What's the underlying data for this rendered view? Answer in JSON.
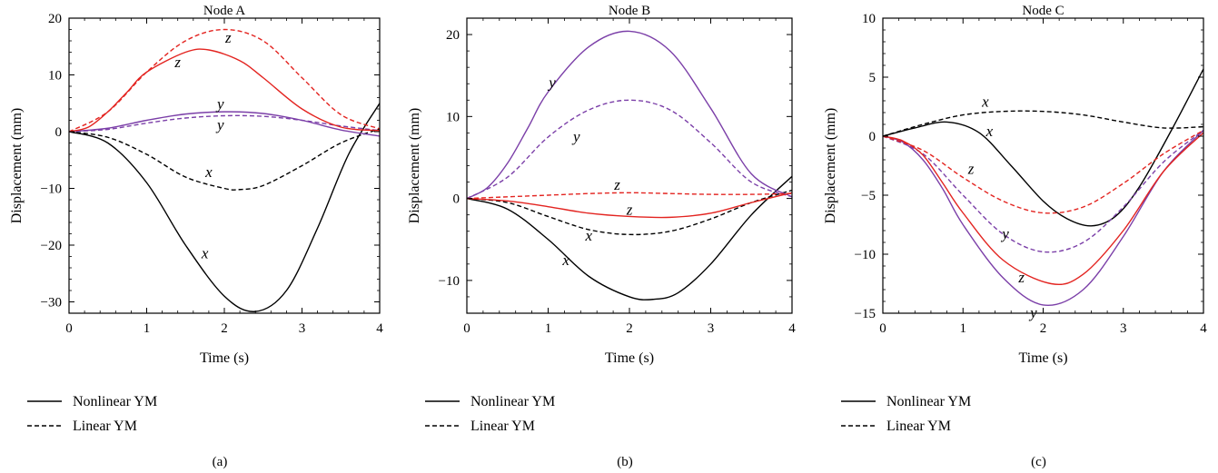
{
  "legend": {
    "solid_label": "Nonlinear YM",
    "dashed_label": "Linear YM"
  },
  "colors": {
    "x": "#000000",
    "y": "#7b3fa8",
    "z": "#e32420"
  },
  "chart_data": [
    {
      "type": "line",
      "panel_label": "(a)",
      "title": "Node A",
      "xlabel": "Time (s)",
      "ylabel": "Displacement (mm)",
      "xlim": [
        0,
        4
      ],
      "ylim": [
        -32,
        20
      ],
      "xticks": [
        "0",
        "1",
        "2",
        "3",
        "4"
      ],
      "yticks": [
        20,
        10,
        0,
        -10,
        -20,
        -30
      ],
      "ytick_labels": [
        "20",
        "10",
        "0",
        "−10",
        "−20",
        "−30"
      ],
      "series": [
        {
          "name": "x",
          "style": "solid",
          "x": [
            0,
            0.5,
            1,
            1.5,
            2,
            2.4,
            2.8,
            3.2,
            3.6,
            4
          ],
          "y": [
            0,
            -2,
            -9,
            -20,
            -29,
            -31.7,
            -28,
            -17,
            -4,
            5
          ]
        },
        {
          "name": "x",
          "style": "dashed",
          "x": [
            0,
            0.5,
            1,
            1.5,
            2,
            2.2,
            2.5,
            3,
            3.5,
            4
          ],
          "y": [
            0,
            -1,
            -4,
            -8,
            -10,
            -10.2,
            -9.5,
            -6,
            -2,
            0.5
          ]
        },
        {
          "name": "y",
          "style": "solid",
          "x": [
            0,
            0.5,
            1,
            1.5,
            2,
            2.5,
            3,
            3.5,
            4
          ],
          "y": [
            0,
            0.6,
            2,
            3.1,
            3.5,
            3.2,
            2,
            0.3,
            -0.8
          ]
        },
        {
          "name": "y",
          "style": "dashed",
          "x": [
            0,
            0.5,
            1,
            1.5,
            2,
            2.5,
            3,
            3.5,
            4
          ],
          "y": [
            0,
            0.4,
            1.5,
            2.4,
            2.8,
            2.7,
            2,
            1,
            0.2
          ]
        },
        {
          "name": "z",
          "style": "solid",
          "x": [
            0,
            0.25,
            0.5,
            0.75,
            1,
            1.5,
            1.8,
            2.2,
            2.5,
            3,
            3.5,
            4
          ],
          "y": [
            0,
            0.8,
            3.5,
            7,
            10.5,
            14,
            14.4,
            12.5,
            9.5,
            4,
            0.8,
            0.2
          ]
        },
        {
          "name": "z",
          "style": "dashed",
          "x": [
            0,
            0.5,
            1,
            1.5,
            2,
            2.5,
            3,
            3.5,
            4
          ],
          "y": [
            0,
            3.5,
            10.5,
            16,
            18,
            16,
            9.5,
            3,
            0.5
          ]
        }
      ],
      "annotations": [
        {
          "text": "z",
          "x": 2.05,
          "y": 16.5,
          "color": "z"
        },
        {
          "text": "z",
          "x": 1.4,
          "y": 12.2,
          "color": "z"
        },
        {
          "text": "y",
          "x": 1.95,
          "y": 4.8,
          "color": "y"
        },
        {
          "text": "y",
          "x": 1.95,
          "y": 1.1,
          "color": "y"
        },
        {
          "text": "x",
          "x": 1.8,
          "y": -7.2,
          "color": "x"
        },
        {
          "text": "x",
          "x": 1.75,
          "y": -21.5,
          "color": "x"
        }
      ]
    },
    {
      "type": "line",
      "panel_label": "(b)",
      "title": "Node B",
      "xlabel": "Time (s)",
      "ylabel": "Displacement (mm)",
      "xlim": [
        0,
        4
      ],
      "ylim": [
        -14,
        22
      ],
      "xticks": [
        "0",
        "1",
        "2",
        "3",
        "4"
      ],
      "yticks": [
        20,
        10,
        0,
        -10
      ],
      "ytick_labels": [
        "20",
        "10",
        "0",
        "−10"
      ],
      "series": [
        {
          "name": "x",
          "style": "solid",
          "x": [
            0,
            0.5,
            1,
            1.5,
            2,
            2.3,
            2.6,
            3,
            3.5,
            4
          ],
          "y": [
            0,
            -1.3,
            -5,
            -9.5,
            -12,
            -12.3,
            -11.5,
            -8,
            -2,
            2.7
          ]
        },
        {
          "name": "x",
          "style": "dashed",
          "x": [
            0,
            0.5,
            1,
            1.5,
            2,
            2.5,
            3,
            3.5,
            4
          ],
          "y": [
            0,
            -0.5,
            -2.2,
            -3.8,
            -4.4,
            -4,
            -2.5,
            -0.5,
            1
          ]
        },
        {
          "name": "y",
          "style": "solid",
          "x": [
            0,
            0.25,
            0.5,
            0.75,
            1,
            1.5,
            2,
            2.5,
            3,
            3.5,
            4
          ],
          "y": [
            0,
            1.3,
            4.3,
            8.6,
            13,
            18.5,
            20.4,
            18,
            11,
            3,
            0.2
          ]
        },
        {
          "name": "y",
          "style": "dashed",
          "x": [
            0,
            0.5,
            1,
            1.5,
            2,
            2.5,
            3,
            3.5,
            4
          ],
          "y": [
            0,
            2.6,
            7.5,
            10.8,
            12,
            10.8,
            6.8,
            2,
            0.2
          ]
        },
        {
          "name": "z",
          "style": "solid",
          "x": [
            0,
            0.5,
            1,
            1.5,
            2,
            2.5,
            3,
            3.5,
            4
          ],
          "y": [
            0,
            -0.3,
            -1,
            -1.8,
            -2.2,
            -2.3,
            -1.8,
            -0.5,
            0.7
          ]
        },
        {
          "name": "z",
          "style": "dashed",
          "x": [
            0,
            0.5,
            1,
            1.5,
            2,
            2.5,
            3,
            3.5,
            4
          ],
          "y": [
            0,
            0.2,
            0.4,
            0.6,
            0.7,
            0.6,
            0.5,
            0.5,
            0.6
          ]
        }
      ],
      "annotations": [
        {
          "text": "y",
          "x": 1.05,
          "y": 14.1,
          "color": "y"
        },
        {
          "text": "y",
          "x": 1.35,
          "y": 7.5,
          "color": "y"
        },
        {
          "text": "z",
          "x": 1.85,
          "y": 1.6,
          "color": "z"
        },
        {
          "text": "z",
          "x": 2.0,
          "y": -1.4,
          "color": "z"
        },
        {
          "text": "x",
          "x": 1.5,
          "y": -4.6,
          "color": "x"
        },
        {
          "text": "x",
          "x": 1.22,
          "y": -7.6,
          "color": "x"
        }
      ]
    },
    {
      "type": "line",
      "panel_label": "(c)",
      "title": "Node C",
      "xlabel": "Time (s)",
      "ylabel": "Displacement (mm)",
      "xlim": [
        0,
        4
      ],
      "ylim": [
        -15,
        10
      ],
      "xticks": [
        "0",
        "1",
        "2",
        "3",
        "4"
      ],
      "yticks": [
        10,
        5,
        0,
        -5,
        -10,
        -15
      ],
      "ytick_labels": [
        "10",
        "5",
        "0",
        "−5",
        "−10",
        "−15"
      ],
      "series": [
        {
          "name": "x",
          "style": "solid",
          "x": [
            0,
            0.4,
            0.8,
            1.2,
            1.6,
            2,
            2.3,
            2.6,
            2.9,
            3.2,
            3.6,
            4
          ],
          "y": [
            0,
            0.7,
            1.2,
            0.3,
            -2.5,
            -5.5,
            -7,
            -7.6,
            -6.8,
            -4.3,
            0.5,
            5.7
          ]
        },
        {
          "name": "x",
          "style": "dashed",
          "x": [
            0,
            0.5,
            1,
            1.5,
            2,
            2.5,
            3,
            3.5,
            4
          ],
          "y": [
            0,
            1,
            1.8,
            2.1,
            2.1,
            1.8,
            1.2,
            0.7,
            0.8
          ]
        },
        {
          "name": "y",
          "style": "solid",
          "x": [
            0,
            0.25,
            0.5,
            0.75,
            1,
            1.5,
            2,
            2.5,
            3,
            3.5,
            4
          ],
          "y": [
            0,
            -0.5,
            -2,
            -4.5,
            -7.5,
            -12,
            -14.3,
            -13,
            -8.5,
            -3,
            0.5
          ]
        },
        {
          "name": "y",
          "style": "dashed",
          "x": [
            0,
            0.5,
            1,
            1.5,
            2,
            2.5,
            3,
            3.5,
            4
          ],
          "y": [
            0,
            -1.5,
            -5,
            -8.3,
            -9.8,
            -9,
            -6,
            -2.2,
            0.5
          ]
        },
        {
          "name": "z",
          "style": "solid",
          "x": [
            0,
            0.25,
            0.5,
            0.75,
            1,
            1.5,
            2.1,
            2.5,
            3,
            3.5,
            4
          ],
          "y": [
            0,
            -0.4,
            -1.6,
            -4,
            -6.5,
            -10.5,
            -12.5,
            -11.7,
            -8,
            -3,
            0.3
          ]
        },
        {
          "name": "z",
          "style": "dashed",
          "x": [
            0,
            0.5,
            1,
            1.5,
            2,
            2.5,
            3,
            3.5,
            4
          ],
          "y": [
            0,
            -1.2,
            -3.5,
            -5.5,
            -6.5,
            -6,
            -4,
            -1.5,
            0.5
          ]
        }
      ],
      "annotations": [
        {
          "text": "x",
          "x": 1.28,
          "y": 2.9,
          "color": "x"
        },
        {
          "text": "x",
          "x": 1.33,
          "y": 0.4,
          "color": "x"
        },
        {
          "text": "z",
          "x": 1.1,
          "y": -2.8,
          "color": "z"
        },
        {
          "text": "y",
          "x": 1.53,
          "y": -8.3,
          "color": "y"
        },
        {
          "text": "z",
          "x": 1.73,
          "y": -12.0,
          "color": "z"
        },
        {
          "text": "y",
          "x": 1.88,
          "y": -15.0,
          "color": "y"
        }
      ]
    }
  ]
}
